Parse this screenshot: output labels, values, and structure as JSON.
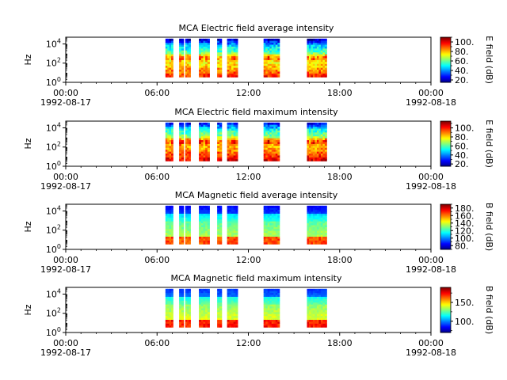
{
  "chart_data": [
    {
      "type": "heatmap",
      "title": "MCA  Electric field average intensity",
      "ylabel": "Hz",
      "colorbar_label": "E field (dB)",
      "colorbar_ticks": [
        "20.",
        "40.",
        "60.",
        "80.",
        "100."
      ],
      "colorbar_range": [
        15,
        110
      ],
      "ylim_log10": [
        0,
        4.7
      ],
      "y_ticks": [
        {
          "exp": 0,
          "label": "10",
          "sup": "0"
        },
        {
          "exp": 2,
          "label": "10",
          "sup": "2"
        },
        {
          "exp": 4,
          "label": "10",
          "sup": "4"
        }
      ],
      "x_ticks": [
        {
          "hour": 0,
          "time": "00:00",
          "date": "1992-08-17"
        },
        {
          "hour": 6,
          "time": "06:00",
          "date": ""
        },
        {
          "hour": 12,
          "time": "12:00",
          "date": ""
        },
        {
          "hour": 18,
          "time": "18:00",
          "date": ""
        },
        {
          "hour": 24,
          "time": "00:00",
          "date": "1992-08-18"
        }
      ],
      "xlim_hours": [
        0,
        24
      ],
      "field": "E",
      "mode": "avg",
      "data_intervals_hours": [
        [
          6.55,
          7.05
        ],
        [
          7.45,
          7.75
        ],
        [
          7.85,
          8.2
        ],
        [
          8.75,
          9.45
        ],
        [
          9.95,
          10.25
        ],
        [
          10.6,
          11.3
        ],
        [
          13.0,
          14.05
        ],
        [
          15.85,
          17.15
        ]
      ]
    },
    {
      "type": "heatmap",
      "title": "MCA  Electric field maximum intensity",
      "ylabel": "Hz",
      "colorbar_label": "E field (dB)",
      "colorbar_ticks": [
        "20.",
        "40.",
        "60.",
        "80.",
        "100."
      ],
      "colorbar_range": [
        15,
        115
      ],
      "ylim_log10": [
        0,
        4.7
      ],
      "y_ticks": [
        {
          "exp": 0,
          "label": "10",
          "sup": "0"
        },
        {
          "exp": 2,
          "label": "10",
          "sup": "2"
        },
        {
          "exp": 4,
          "label": "10",
          "sup": "4"
        }
      ],
      "x_ticks": [
        {
          "hour": 0,
          "time": "00:00",
          "date": "1992-08-17"
        },
        {
          "hour": 6,
          "time": "06:00",
          "date": ""
        },
        {
          "hour": 12,
          "time": "12:00",
          "date": ""
        },
        {
          "hour": 18,
          "time": "18:00",
          "date": ""
        },
        {
          "hour": 24,
          "time": "00:00",
          "date": "1992-08-18"
        }
      ],
      "xlim_hours": [
        0,
        24
      ],
      "field": "E",
      "mode": "max",
      "data_intervals_hours": [
        [
          6.55,
          7.05
        ],
        [
          7.45,
          7.75
        ],
        [
          7.85,
          8.2
        ],
        [
          8.75,
          9.45
        ],
        [
          9.95,
          10.25
        ],
        [
          10.6,
          11.3
        ],
        [
          13.0,
          14.05
        ],
        [
          15.85,
          17.15
        ]
      ]
    },
    {
      "type": "heatmap",
      "title": "MCA  Magnetic field average intensity",
      "ylabel": "Hz",
      "colorbar_label": "B field (dB)",
      "colorbar_ticks": [
        "80.",
        "100.",
        "120.",
        "140.",
        "160.",
        "180."
      ],
      "colorbar_range": [
        70,
        190
      ],
      "ylim_log10": [
        0,
        4.7
      ],
      "y_ticks": [
        {
          "exp": 0,
          "label": "10",
          "sup": "0"
        },
        {
          "exp": 2,
          "label": "10",
          "sup": "2"
        },
        {
          "exp": 4,
          "label": "10",
          "sup": "4"
        }
      ],
      "x_ticks": [
        {
          "hour": 0,
          "time": "00:00",
          "date": "1992-08-17"
        },
        {
          "hour": 6,
          "time": "06:00",
          "date": ""
        },
        {
          "hour": 12,
          "time": "12:00",
          "date": ""
        },
        {
          "hour": 18,
          "time": "18:00",
          "date": ""
        },
        {
          "hour": 24,
          "time": "00:00",
          "date": "1992-08-18"
        }
      ],
      "xlim_hours": [
        0,
        24
      ],
      "field": "B",
      "mode": "avg",
      "data_intervals_hours": [
        [
          6.55,
          7.05
        ],
        [
          7.45,
          7.75
        ],
        [
          7.85,
          8.2
        ],
        [
          8.75,
          9.45
        ],
        [
          9.95,
          10.25
        ],
        [
          10.6,
          11.3
        ],
        [
          13.0,
          14.05
        ],
        [
          15.85,
          17.15
        ]
      ]
    },
    {
      "type": "heatmap",
      "title": "MCA  Magnetic field maximum intensity",
      "ylabel": "Hz",
      "colorbar_label": "B field (dB)",
      "colorbar_ticks": [
        "100.",
        "150."
      ],
      "colorbar_range": [
        70,
        190
      ],
      "ylim_log10": [
        0,
        4.7
      ],
      "y_ticks": [
        {
          "exp": 0,
          "label": "10",
          "sup": "0"
        },
        {
          "exp": 2,
          "label": "10",
          "sup": "2"
        },
        {
          "exp": 4,
          "label": "10",
          "sup": "4"
        }
      ],
      "x_ticks": [
        {
          "hour": 0,
          "time": "00:00",
          "date": "1992-08-17"
        },
        {
          "hour": 6,
          "time": "06:00",
          "date": ""
        },
        {
          "hour": 12,
          "time": "12:00",
          "date": ""
        },
        {
          "hour": 18,
          "time": "18:00",
          "date": ""
        },
        {
          "hour": 24,
          "time": "00:00",
          "date": "1992-08-18"
        }
      ],
      "xlim_hours": [
        0,
        24
      ],
      "field": "B",
      "mode": "max",
      "data_intervals_hours": [
        [
          6.55,
          7.05
        ],
        [
          7.45,
          7.75
        ],
        [
          7.85,
          8.2
        ],
        [
          8.75,
          9.45
        ],
        [
          9.95,
          10.25
        ],
        [
          10.6,
          11.3
        ],
        [
          13.0,
          14.05
        ],
        [
          15.85,
          17.15
        ]
      ]
    }
  ]
}
